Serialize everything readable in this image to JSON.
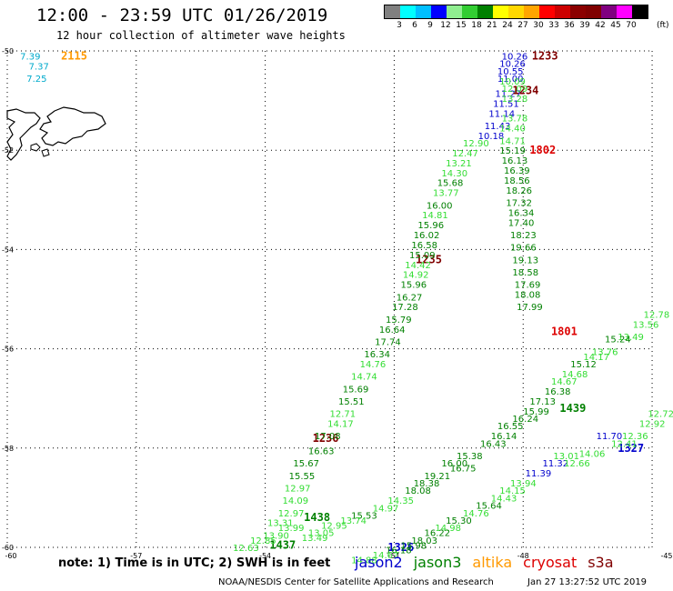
{
  "title": "12:00 - 23:59 UTC 01/26/2019",
  "subtitle": "12 hour collection of altimeter wave heights",
  "legend": {
    "unit": "(ft)",
    "colors": [
      "#808080",
      "#00ffff",
      "#00bfff",
      "#0000ff",
      "#90ee90",
      "#32cd32",
      "#008000",
      "#ffff00",
      "#ffd700",
      "#ffa500",
      "#ff0000",
      "#cc0000",
      "#8b0000",
      "#800000",
      "#800080",
      "#ff00ff",
      "#000000"
    ],
    "labels": [
      "3",
      "6",
      "9",
      "12",
      "15",
      "18",
      "21",
      "24",
      "27",
      "30",
      "33",
      "36",
      "39",
      "42",
      "45",
      "70"
    ]
  },
  "axes": {
    "lat_labels": [
      "-50",
      "-52",
      "-54",
      "-56",
      "-58",
      "-60"
    ],
    "lon_labels": [
      "-60",
      "-57",
      "-54",
      "-51",
      "-48",
      "-45"
    ]
  },
  "colors": {
    "blue": "#0000cc",
    "dark_green": "#008000",
    "light_green": "#33dd33",
    "cyan": "#00aacc",
    "orange": "#ff9900",
    "red": "#dd0000",
    "dark_red": "#800000"
  },
  "labels": [
    {
      "t": "7.39",
      "c": "cyan",
      "lon": -59.7,
      "lat": -50.1
    },
    {
      "t": "7.37",
      "c": "cyan",
      "lon": -59.5,
      "lat": -50.3
    },
    {
      "t": "7.25",
      "c": "cyan",
      "lon": -59.55,
      "lat": -50.55
    },
    {
      "t": "2115",
      "c": "orange",
      "lon": -58.75,
      "lat": -50.1
    },
    {
      "t": "10.26",
      "c": "blue",
      "lon": -48.5,
      "lat": -50.1
    },
    {
      "t": "10.26",
      "c": "blue",
      "lon": -48.55,
      "lat": -50.25
    },
    {
      "t": "10.55",
      "c": "blue",
      "lon": -48.6,
      "lat": -50.4
    },
    {
      "t": "11.00",
      "c": "blue",
      "lon": -48.6,
      "lat": -50.55
    },
    {
      "t": "11.27",
      "c": "blue",
      "lon": -48.65,
      "lat": -50.85
    },
    {
      "t": "11.51",
      "c": "blue",
      "lon": -48.7,
      "lat": -51.05
    },
    {
      "t": "11.14",
      "c": "blue",
      "lon": -48.8,
      "lat": -51.25
    },
    {
      "t": "11.43",
      "c": "blue",
      "lon": -48.9,
      "lat": -51.5
    },
    {
      "t": "10.18",
      "c": "blue",
      "lon": -49.05,
      "lat": -51.7
    },
    {
      "t": "1233",
      "c": "dark_red",
      "lon": -47.8,
      "lat": -50.1
    },
    {
      "t": "1234",
      "c": "dark_red",
      "lon": -48.25,
      "lat": -50.8
    },
    {
      "t": "1802",
      "c": "red",
      "lon": -47.85,
      "lat": -52.0
    },
    {
      "t": "1801",
      "c": "red",
      "lon": -47.35,
      "lat": -55.65
    },
    {
      "t": "1235",
      "c": "dark_red",
      "lon": -50.5,
      "lat": -54.2
    },
    {
      "t": "1236",
      "c": "dark_red",
      "lon": -52.9,
      "lat": -57.8
    },
    {
      "t": "1327",
      "c": "blue",
      "lon": -45.8,
      "lat": -58.0
    },
    {
      "t": "11.70",
      "c": "blue",
      "lon": -46.3,
      "lat": -57.75
    },
    {
      "t": "11.32",
      "c": "blue",
      "lon": -47.55,
      "lat": -58.3
    },
    {
      "t": "11.39",
      "c": "blue",
      "lon": -47.95,
      "lat": -58.5
    },
    {
      "t": "1326",
      "c": "blue",
      "lon": -51.15,
      "lat": -60.0
    },
    {
      "t": "1439",
      "c": "dark_green",
      "lon": -47.15,
      "lat": -57.2
    },
    {
      "t": "1438",
      "c": "dark_green",
      "lon": -53.1,
      "lat": -59.4
    },
    {
      "t": "1437",
      "c": "dark_green",
      "lon": -53.9,
      "lat": -59.95
    },
    {
      "t": "10.09",
      "c": "light_green",
      "lon": -48.55,
      "lat": -50.6
    },
    {
      "t": "12.09",
      "c": "light_green",
      "lon": -48.5,
      "lat": -50.75
    },
    {
      "t": "13.28",
      "c": "light_green",
      "lon": -48.5,
      "lat": -50.95
    },
    {
      "t": "13.78",
      "c": "light_green",
      "lon": -48.5,
      "lat": -51.35
    },
    {
      "t": "14.40",
      "c": "light_green",
      "lon": -48.55,
      "lat": -51.55
    },
    {
      "t": "14.71",
      "c": "light_green",
      "lon": -48.55,
      "lat": -51.8
    },
    {
      "t": "12.90",
      "c": "light_green",
      "lon": -49.4,
      "lat": -51.85
    },
    {
      "t": "12.47",
      "c": "light_green",
      "lon": -49.65,
      "lat": -52.05
    },
    {
      "t": "13.21",
      "c": "light_green",
      "lon": -49.8,
      "lat": -52.25
    },
    {
      "t": "14.30",
      "c": "light_green",
      "lon": -49.9,
      "lat": -52.45
    },
    {
      "t": "15.68",
      "c": "dark_green",
      "lon": -50.0,
      "lat": -52.65
    },
    {
      "t": "13.77",
      "c": "light_green",
      "lon": -50.1,
      "lat": -52.85
    },
    {
      "t": "16.00",
      "c": "dark_green",
      "lon": -50.25,
      "lat": -53.1
    },
    {
      "t": "14.81",
      "c": "light_green",
      "lon": -50.35,
      "lat": -53.3
    },
    {
      "t": "15.96",
      "c": "dark_green",
      "lon": -50.45,
      "lat": -53.5
    },
    {
      "t": "16.02",
      "c": "dark_green",
      "lon": -50.55,
      "lat": -53.7
    },
    {
      "t": "16.58",
      "c": "dark_green",
      "lon": -50.6,
      "lat": -53.9
    },
    {
      "t": "15.09",
      "c": "dark_green",
      "lon": -50.65,
      "lat": -54.1
    },
    {
      "t": "14.42",
      "c": "light_green",
      "lon": -50.75,
      "lat": -54.3
    },
    {
      "t": "14.92",
      "c": "light_green",
      "lon": -50.8,
      "lat": -54.5
    },
    {
      "t": "15.96",
      "c": "dark_green",
      "lon": -50.85,
      "lat": -54.7
    },
    {
      "t": "16.27",
      "c": "dark_green",
      "lon": -50.95,
      "lat": -54.95
    },
    {
      "t": "17.28",
      "c": "dark_green",
      "lon": -51.05,
      "lat": -55.15
    },
    {
      "t": "15.79",
      "c": "dark_green",
      "lon": -51.2,
      "lat": -55.4
    },
    {
      "t": "16.64",
      "c": "dark_green",
      "lon": -51.35,
      "lat": -55.6
    },
    {
      "t": "17.74",
      "c": "dark_green",
      "lon": -51.45,
      "lat": -55.85
    },
    {
      "t": "16.34",
      "c": "dark_green",
      "lon": -51.7,
      "lat": -56.1
    },
    {
      "t": "14.76",
      "c": "light_green",
      "lon": -51.8,
      "lat": -56.3
    },
    {
      "t": "14.74",
      "c": "light_green",
      "lon": -52.0,
      "lat": -56.55
    },
    {
      "t": "15.69",
      "c": "dark_green",
      "lon": -52.2,
      "lat": -56.8
    },
    {
      "t": "15.51",
      "c": "dark_green",
      "lon": -52.3,
      "lat": -57.05
    },
    {
      "t": "12.71",
      "c": "light_green",
      "lon": -52.5,
      "lat": -57.3
    },
    {
      "t": "14.17",
      "c": "light_green",
      "lon": -52.55,
      "lat": -57.5
    },
    {
      "t": "17.08",
      "c": "dark_green",
      "lon": -52.85,
      "lat": -57.75
    },
    {
      "t": "16.63",
      "c": "dark_green",
      "lon": -53.0,
      "lat": -58.05
    },
    {
      "t": "15.67",
      "c": "dark_green",
      "lon": -53.35,
      "lat": -58.3
    },
    {
      "t": "15.55",
      "c": "dark_green",
      "lon": -53.45,
      "lat": -58.55
    },
    {
      "t": "12.97",
      "c": "light_green",
      "lon": -53.55,
      "lat": -58.8
    },
    {
      "t": "14.09",
      "c": "light_green",
      "lon": -53.6,
      "lat": -59.05
    },
    {
      "t": "12.97",
      "c": "light_green",
      "lon": -53.7,
      "lat": -59.3
    },
    {
      "t": "13.31",
      "c": "light_green",
      "lon": -53.95,
      "lat": -59.5
    },
    {
      "t": "13.99",
      "c": "light_green",
      "lon": -53.7,
      "lat": -59.6
    },
    {
      "t": "13.90",
      "c": "light_green",
      "lon": -54.05,
      "lat": -59.75
    },
    {
      "t": "12.85",
      "c": "light_green",
      "lon": -54.35,
      "lat": -59.85
    },
    {
      "t": "12.63",
      "c": "light_green",
      "lon": -54.75,
      "lat": -60.0
    },
    {
      "t": "15.19",
      "c": "dark_green",
      "lon": -48.55,
      "lat": -52.0
    },
    {
      "t": "16.13",
      "c": "dark_green",
      "lon": -48.5,
      "lat": -52.2
    },
    {
      "t": "16.39",
      "c": "dark_green",
      "lon": -48.45,
      "lat": -52.4
    },
    {
      "t": "18.56",
      "c": "dark_green",
      "lon": -48.45,
      "lat": -52.6
    },
    {
      "t": "18.26",
      "c": "dark_green",
      "lon": -48.4,
      "lat": -52.8
    },
    {
      "t": "17.32",
      "c": "dark_green",
      "lon": -48.4,
      "lat": -53.05
    },
    {
      "t": "16.34",
      "c": "dark_green",
      "lon": -48.35,
      "lat": -53.25
    },
    {
      "t": "17.40",
      "c": "dark_green",
      "lon": -48.35,
      "lat": -53.45
    },
    {
      "t": "18.23",
      "c": "dark_green",
      "lon": -48.3,
      "lat": -53.7
    },
    {
      "t": "19.66",
      "c": "dark_green",
      "lon": -48.3,
      "lat": -53.95
    },
    {
      "t": "19.13",
      "c": "dark_green",
      "lon": -48.25,
      "lat": -54.2
    },
    {
      "t": "18.58",
      "c": "dark_green",
      "lon": -48.25,
      "lat": -54.45
    },
    {
      "t": "17.69",
      "c": "dark_green",
      "lon": -48.2,
      "lat": -54.7
    },
    {
      "t": "18.08",
      "c": "dark_green",
      "lon": -48.2,
      "lat": -54.9
    },
    {
      "t": "17.99",
      "c": "dark_green",
      "lon": -48.15,
      "lat": -55.15
    },
    {
      "t": "13.56",
      "c": "light_green",
      "lon": -45.45,
      "lat": -55.5
    },
    {
      "t": "12.78",
      "c": "light_green",
      "lon": -45.2,
      "lat": -55.3
    },
    {
      "t": "13.49",
      "c": "light_green",
      "lon": -45.8,
      "lat": -55.75
    },
    {
      "t": "15.24",
      "c": "dark_green",
      "lon": -46.1,
      "lat": -55.8
    },
    {
      "t": "13.76",
      "c": "light_green",
      "lon": -46.4,
      "lat": -56.05
    },
    {
      "t": "14.17",
      "c": "light_green",
      "lon": -46.6,
      "lat": -56.15
    },
    {
      "t": "15.12",
      "c": "dark_green",
      "lon": -46.9,
      "lat": -56.3
    },
    {
      "t": "14.68",
      "c": "light_green",
      "lon": -47.1,
      "lat": -56.5
    },
    {
      "t": "14.67",
      "c": "light_green",
      "lon": -47.35,
      "lat": -56.65
    },
    {
      "t": "16.38",
      "c": "dark_green",
      "lon": -47.5,
      "lat": -56.85
    },
    {
      "t": "17.13",
      "c": "dark_green",
      "lon": -47.85,
      "lat": -57.05
    },
    {
      "t": "15.99",
      "c": "dark_green",
      "lon": -48.0,
      "lat": -57.25
    },
    {
      "t": "16.24",
      "c": "dark_green",
      "lon": -48.25,
      "lat": -57.4
    },
    {
      "t": "16.55",
      "c": "dark_green",
      "lon": -48.6,
      "lat": -57.55
    },
    {
      "t": "16.14",
      "c": "dark_green",
      "lon": -48.75,
      "lat": -57.75
    },
    {
      "t": "16.43",
      "c": "dark_green",
      "lon": -49.0,
      "lat": -57.9
    },
    {
      "t": "15.38",
      "c": "dark_green",
      "lon": -49.55,
      "lat": -58.15
    },
    {
      "t": "16.00",
      "c": "dark_green",
      "lon": -49.9,
      "lat": -58.3
    },
    {
      "t": "16.75",
      "c": "dark_green",
      "lon": -49.7,
      "lat": -58.4
    },
    {
      "t": "19.21",
      "c": "dark_green",
      "lon": -50.3,
      "lat": -58.55
    },
    {
      "t": "18.38",
      "c": "dark_green",
      "lon": -50.55,
      "lat": -58.7
    },
    {
      "t": "18.08",
      "c": "dark_green",
      "lon": -50.75,
      "lat": -58.85
    },
    {
      "t": "14.35",
      "c": "light_green",
      "lon": -51.15,
      "lat": -59.05
    },
    {
      "t": "14.97",
      "c": "light_green",
      "lon": -51.5,
      "lat": -59.2
    },
    {
      "t": "15.53",
      "c": "dark_green",
      "lon": -52.0,
      "lat": -59.35
    },
    {
      "t": "13.74",
      "c": "light_green",
      "lon": -52.25,
      "lat": -59.45
    },
    {
      "t": "12.95",
      "c": "light_green",
      "lon": -52.7,
      "lat": -59.55
    },
    {
      "t": "13.05",
      "c": "light_green",
      "lon": -53.0,
      "lat": -59.7
    },
    {
      "t": "13.49",
      "c": "light_green",
      "lon": -53.15,
      "lat": -59.8
    },
    {
      "t": "12.72",
      "c": "light_green",
      "lon": -45.1,
      "lat": -57.3
    },
    {
      "t": "12.92",
      "c": "light_green",
      "lon": -45.3,
      "lat": -57.5
    },
    {
      "t": "12.36",
      "c": "light_green",
      "lon": -45.7,
      "lat": -57.75
    },
    {
      "t": "12.41",
      "c": "light_green",
      "lon": -45.95,
      "lat": -57.9
    },
    {
      "t": "14.06",
      "c": "light_green",
      "lon": -46.7,
      "lat": -58.1
    },
    {
      "t": "12.66",
      "c": "light_green",
      "lon": -47.05,
      "lat": -58.3
    },
    {
      "t": "13.01",
      "c": "light_green",
      "lon": -47.3,
      "lat": -58.15
    },
    {
      "t": "13.94",
      "c": "light_green",
      "lon": -48.3,
      "lat": -58.7
    },
    {
      "t": "14.15",
      "c": "light_green",
      "lon": -48.55,
      "lat": -58.85
    },
    {
      "t": "14.43",
      "c": "light_green",
      "lon": -48.75,
      "lat": -59.0
    },
    {
      "t": "15.64",
      "c": "dark_green",
      "lon": -49.1,
      "lat": -59.15
    },
    {
      "t": "14.76",
      "c": "light_green",
      "lon": -49.4,
      "lat": -59.3
    },
    {
      "t": "15.30",
      "c": "dark_green",
      "lon": -49.8,
      "lat": -59.45
    },
    {
      "t": "14.98",
      "c": "light_green",
      "lon": -50.05,
      "lat": -59.6
    },
    {
      "t": "16.22",
      "c": "dark_green",
      "lon": -50.3,
      "lat": -59.7
    },
    {
      "t": "18.03",
      "c": "dark_green",
      "lon": -50.6,
      "lat": -59.85
    },
    {
      "t": "15.98",
      "c": "dark_green",
      "lon": -50.85,
      "lat": -59.95
    },
    {
      "t": "16.18",
      "c": "dark_green",
      "lon": -51.2,
      "lat": -60.05
    },
    {
      "t": "14.67",
      "c": "light_green",
      "lon": -51.5,
      "lat": -60.15
    },
    {
      "t": "14.88",
      "c": "light_green",
      "lon": -52.0,
      "lat": -60.25
    }
  ],
  "note": "note: 1) Time is in UTC; 2) SWH is in feet",
  "satellites": [
    {
      "name": "jason2",
      "color": "blue"
    },
    {
      "name": "jason3",
      "color": "dark_green"
    },
    {
      "name": "altika",
      "color": "orange"
    },
    {
      "name": "cryosat",
      "color": "red"
    },
    {
      "name": "s3a",
      "color": "dark_red"
    }
  ],
  "credit": "NOAA/NESDIS Center for Satellite Applications and Research",
  "timestamp": "Jan 27 13:27:52 UTC 2019"
}
